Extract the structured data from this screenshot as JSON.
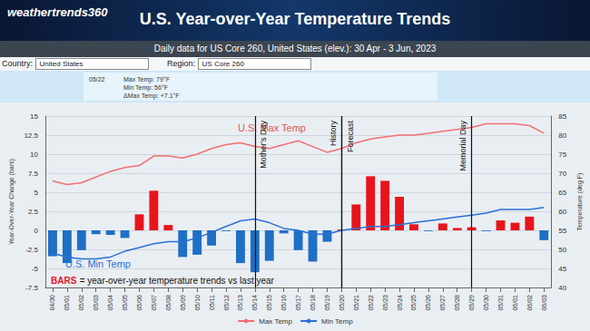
{
  "header": {
    "logo": "weathertrends360",
    "country_label": "Country:",
    "country": "United States",
    "region_label": "Region:",
    "region": "US Core 260",
    "info_date": "05/22",
    "info_lines": [
      "Max Temp: 79°F",
      "Min Temp: 56°F",
      "ΔMax Temp: +7.1°F"
    ]
  },
  "chart_data": {
    "type": "bar",
    "title": "U.S. Year-over-Year Temperature Trends",
    "subtitle": "Daily data for US Core 260, United States (elev.): 30 Apr - 3 Jun, 2023",
    "categories": [
      "04/30",
      "05/01",
      "05/02",
      "05/03",
      "05/04",
      "05/05",
      "05/06",
      "05/07",
      "05/08",
      "05/09",
      "05/10",
      "05/11",
      "05/12",
      "05/13",
      "05/14",
      "05/15",
      "05/16",
      "05/17",
      "05/18",
      "05/19",
      "05/20",
      "05/21",
      "05/22",
      "05/23",
      "05/24",
      "05/25",
      "05/26",
      "05/27",
      "05/28",
      "05/29",
      "05/30",
      "05/31",
      "06/01",
      "06/02",
      "06/03"
    ],
    "series": [
      {
        "type": "bar",
        "values": [
          -3.4,
          -4.3,
          -2.6,
          -0.5,
          -0.6,
          -1.0,
          2.1,
          5.2,
          0.7,
          -3.5,
          -3.2,
          -2.0,
          -0.1,
          -4.3,
          -5.5,
          -4.0,
          -0.4,
          -2.6,
          -4.1,
          -1.5,
          0.1,
          3.4,
          7.1,
          6.5,
          4.4,
          0.8,
          -0.1,
          0.9,
          0.3,
          0.4,
          -0.1,
          1.3,
          1.0,
          1.8,
          -1.3
        ],
        "colors": [
          "#1f6fc5",
          "#1f6fc5",
          "#1f6fc5",
          "#1f6fc5",
          "#1f6fc5",
          "#1f6fc5",
          "#e8141c",
          "#e8141c",
          "#e8141c",
          "#1f6fc5",
          "#1f6fc5",
          "#1f6fc5",
          "#1f6fc5",
          "#1f6fc5",
          "#1f6fc5",
          "#1f6fc5",
          "#1f6fc5",
          "#1f6fc5",
          "#1f6fc5",
          "#1f6fc5",
          "#e8141c",
          "#e8141c",
          "#e8141c",
          "#e8141c",
          "#e8141c",
          "#e8141c",
          "#1f6fc5",
          "#e8141c",
          "#e8141c",
          "#e8141c",
          "#1f6fc5",
          "#e8141c",
          "#e8141c",
          "#e8141c",
          "#1f6fc5"
        ]
      },
      {
        "name": "Max Temp",
        "type": "line",
        "axis": "y2",
        "color": "#f07070",
        "values": [
          68,
          67,
          67.5,
          69,
          70.5,
          71.5,
          72,
          74.5,
          74.5,
          74,
          75,
          76.5,
          77.5,
          78,
          77,
          76.5,
          77.5,
          78.5,
          77,
          75.5,
          76.5,
          78,
          79,
          79.5,
          80,
          80,
          80.5,
          81,
          81.5,
          82,
          83,
          83,
          83,
          82.5,
          80.5
        ]
      },
      {
        "name": "Min Temp",
        "type": "line",
        "axis": "y2",
        "color": "#2a6fd6",
        "values": [
          49,
          48,
          47.5,
          47.5,
          48,
          49.5,
          50.5,
          51.5,
          52,
          52,
          53,
          54.5,
          56,
          57.5,
          58,
          57,
          55.5,
          55,
          54,
          54,
          55,
          55.5,
          56,
          56,
          56.5,
          57,
          57.5,
          58,
          58.5,
          59,
          59.5,
          60.5,
          60.5,
          60.5,
          61
        ]
      }
    ],
    "ylabel": "Year-Over-Year Change (bars)",
    "ylim": [
      -7.5,
      15
    ],
    "yticks": [
      -7.5,
      -5,
      -2.5,
      0,
      2.5,
      5,
      7.5,
      10,
      12.5,
      15
    ],
    "y2label": "Temperature (deg F)",
    "y2lim": [
      40,
      85
    ],
    "y2ticks": [
      40,
      45,
      50,
      55,
      60,
      65,
      70,
      75,
      80,
      85
    ],
    "event_labels": [
      {
        "text": "Mother's Day",
        "x": "05/14"
      },
      {
        "text": "History",
        "x": "05/20"
      },
      {
        "text": "Forecast",
        "x": "05/20"
      },
      {
        "text": "Memorial Day",
        "x": "05/29"
      }
    ],
    "line_labels": [
      {
        "text": "U.S. Max Temp",
        "color": "#e05555"
      },
      {
        "text": "U.S. Min Temp",
        "color": "#2a6fd6"
      }
    ],
    "bars_note": [
      "BARS",
      "= year-over-year temperature trends vs last year"
    ],
    "legend": "bottom",
    "grid": true
  }
}
